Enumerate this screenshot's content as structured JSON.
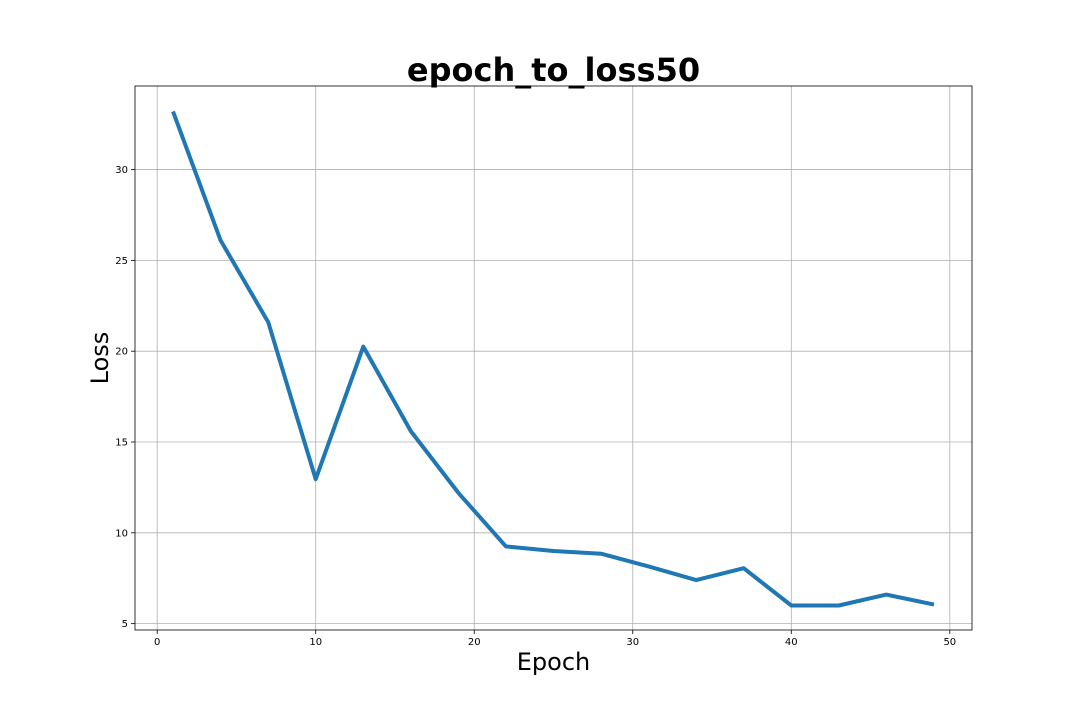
{
  "chart_data": {
    "type": "line",
    "title": "epoch_to_loss50",
    "xlabel": "Epoch",
    "ylabel": "Loss",
    "xlim": [
      -1.4,
      51.4
    ],
    "ylim": [
      4.65,
      34.6
    ],
    "xticks": [
      0,
      10,
      20,
      30,
      40,
      50
    ],
    "yticks": [
      5,
      10,
      15,
      20,
      25,
      30
    ],
    "grid": true,
    "series": [
      {
        "color": "#1f77b4",
        "x": [
          1,
          4,
          7,
          10,
          13,
          16,
          19,
          22,
          25,
          28,
          31,
          34,
          37,
          40,
          43,
          46,
          49
        ],
        "y": [
          33.2,
          26.1,
          21.6,
          12.95,
          20.25,
          15.6,
          12.2,
          9.25,
          9.0,
          8.85,
          8.15,
          7.4,
          8.05,
          6.0,
          6.0,
          6.6,
          6.05
        ]
      }
    ]
  }
}
